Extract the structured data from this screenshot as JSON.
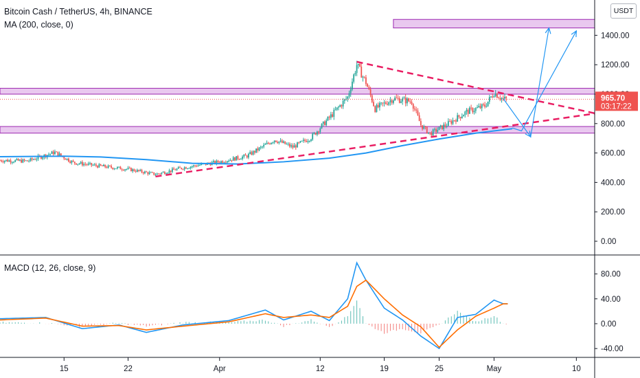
{
  "header": {
    "symbol_title": "Bitcoin Cash / TetherUS, 4h, BINANCE",
    "ma_indicator": "MA (200, close, 0)",
    "macd_indicator": "MACD (12, 26, close, 9)",
    "currency_badge": "USDT"
  },
  "price_badge": {
    "value": "965.70",
    "countdown": "03:17:22",
    "color": "#ef5350"
  },
  "colors": {
    "up": "#26a69a",
    "down": "#ef5350",
    "ma": "#2196f3",
    "zone_fill": "#e9c8ef",
    "zone_border": "#9c27b0",
    "trend": "#e91e63",
    "arrow": "#2196f3",
    "macd": "#2196f3",
    "signal": "#ff6d00"
  },
  "chart_data": [
    {
      "type": "candlestick",
      "title": "Bitcoin Cash / TetherUS, 4h, BINANCE",
      "x_ticks": [
        "15",
        "22",
        "Apr",
        "12",
        "19",
        "25",
        "May",
        "10"
      ],
      "y_ticks": [
        "1400.00",
        "1200.00",
        "1000.00",
        "800.00",
        "600.00",
        "400.00",
        "200.00",
        "0.00"
      ],
      "ylim": [
        -70,
        1640
      ],
      "xlim": [
        "Mar 8",
        "May 12"
      ],
      "last_price": 965.7,
      "ma200_path": [
        {
          "date": "Mar 8",
          "value": 575
        },
        {
          "date": "Mar 15",
          "value": 578
        },
        {
          "date": "Mar 19",
          "value": 573
        },
        {
          "date": "Mar 24",
          "value": 555
        },
        {
          "date": "Mar 29",
          "value": 530
        },
        {
          "date": "Apr 3",
          "value": 525
        },
        {
          "date": "Apr 8",
          "value": 540
        },
        {
          "date": "Apr 13",
          "value": 565
        },
        {
          "date": "Apr 17",
          "value": 600
        },
        {
          "date": "Apr 21",
          "value": 650
        },
        {
          "date": "Apr 25",
          "value": 695
        },
        {
          "date": "Apr 29",
          "value": 735
        },
        {
          "date": "May 3",
          "value": 765
        }
      ],
      "price_path": [
        {
          "date": "Mar 8",
          "value": 550
        },
        {
          "date": "Mar 11",
          "value": 545
        },
        {
          "date": "Mar 14",
          "value": 605
        },
        {
          "date": "Mar 16",
          "value": 535
        },
        {
          "date": "Mar 19",
          "value": 510
        },
        {
          "date": "Mar 22",
          "value": 490
        },
        {
          "date": "Mar 25",
          "value": 455
        },
        {
          "date": "Mar 28",
          "value": 500
        },
        {
          "date": "Apr 1",
          "value": 540
        },
        {
          "date": "Apr 4",
          "value": 580
        },
        {
          "date": "Apr 7",
          "value": 690
        },
        {
          "date": "Apr 9",
          "value": 640
        },
        {
          "date": "Apr 11",
          "value": 705
        },
        {
          "date": "Apr 13",
          "value": 840
        },
        {
          "date": "Apr 15",
          "value": 980
        },
        {
          "date": "Apr 16",
          "value": 1200
        },
        {
          "date": "Apr 17",
          "value": 1080
        },
        {
          "date": "Apr 18",
          "value": 900
        },
        {
          "date": "Apr 20",
          "value": 970
        },
        {
          "date": "Apr 21",
          "value": 960
        },
        {
          "date": "Apr 22",
          "value": 950
        },
        {
          "date": "Apr 23",
          "value": 790
        },
        {
          "date": "Apr 24",
          "value": 730
        },
        {
          "date": "Apr 26",
          "value": 800
        },
        {
          "date": "Apr 28",
          "value": 880
        },
        {
          "date": "Apr 30",
          "value": 920
        },
        {
          "date": "May 1",
          "value": 1010
        },
        {
          "date": "May 2",
          "value": 966
        }
      ],
      "horizontal_zones": [
        {
          "from": 1000,
          "to": 1040,
          "start": "Mar 8"
        },
        {
          "from": 735,
          "to": 780,
          "start": "Mar 8"
        },
        {
          "from": 1450,
          "to": 1508,
          "start": "Apr 20"
        }
      ],
      "trend_lines": [
        {
          "from": {
            "date": "Apr 16",
            "value": 1220
          },
          "to": {
            "date": "May 12",
            "value": 870
          }
        },
        {
          "from": {
            "date": "Mar 25",
            "value": 440
          },
          "to": {
            "date": "May 12",
            "value": 868
          }
        }
      ],
      "projection": [
        {
          "date": "May 2",
          "value": 970
        },
        {
          "date": "May 5",
          "value": 710
        },
        {
          "date": "May 7",
          "value": 1450
        },
        {
          "date": "May 3",
          "value": 770
        },
        {
          "date": "May 4",
          "value": 750
        },
        {
          "date": "May 10",
          "value": 1430
        }
      ]
    },
    {
      "type": "line",
      "title": "MACD (12, 26, close, 9)",
      "y_ticks": [
        "80.00",
        "40.00",
        "0.00",
        "-40.00"
      ],
      "ylim": [
        -52,
        105
      ],
      "series": [
        {
          "name": "MACD",
          "points": [
            {
              "date": "Mar 8",
              "value": 8
            },
            {
              "date": "Mar 13",
              "value": 10
            },
            {
              "date": "Mar 17",
              "value": -8
            },
            {
              "date": "Mar 21",
              "value": -2
            },
            {
              "date": "Mar 24",
              "value": -14
            },
            {
              "date": "Mar 28",
              "value": -2
            },
            {
              "date": "Apr 2",
              "value": 5
            },
            {
              "date": "Apr 6",
              "value": 22
            },
            {
              "date": "Apr 8",
              "value": 6
            },
            {
              "date": "Apr 11",
              "value": 20
            },
            {
              "date": "Apr 13",
              "value": 5
            },
            {
              "date": "Apr 15",
              "value": 40
            },
            {
              "date": "Apr 16",
              "value": 98
            },
            {
              "date": "Apr 17",
              "value": 70
            },
            {
              "date": "Apr 19",
              "value": 25
            },
            {
              "date": "Apr 21",
              "value": 6
            },
            {
              "date": "Apr 23",
              "value": -20
            },
            {
              "date": "Apr 25",
              "value": -40
            },
            {
              "date": "Apr 27",
              "value": 10
            },
            {
              "date": "Apr 29",
              "value": 15
            },
            {
              "date": "May 1",
              "value": 38
            },
            {
              "date": "May 2",
              "value": 32
            }
          ]
        },
        {
          "name": "Signal",
          "points": [
            {
              "date": "Mar 8",
              "value": 6
            },
            {
              "date": "Mar 13",
              "value": 9
            },
            {
              "date": "Mar 17",
              "value": -4
            },
            {
              "date": "Mar 21",
              "value": -3
            },
            {
              "date": "Mar 24",
              "value": -10
            },
            {
              "date": "Mar 28",
              "value": -4
            },
            {
              "date": "Apr 2",
              "value": 3
            },
            {
              "date": "Apr 6",
              "value": 16
            },
            {
              "date": "Apr 8",
              "value": 10
            },
            {
              "date": "Apr 11",
              "value": 14
            },
            {
              "date": "Apr 13",
              "value": 10
            },
            {
              "date": "Apr 15",
              "value": 28
            },
            {
              "date": "Apr 16",
              "value": 60
            },
            {
              "date": "Apr 17",
              "value": 70
            },
            {
              "date": "Apr 19",
              "value": 40
            },
            {
              "date": "Apr 21",
              "value": 14
            },
            {
              "date": "Apr 23",
              "value": -5
            },
            {
              "date": "Apr 25",
              "value": -38
            },
            {
              "date": "Apr 27",
              "value": -10
            },
            {
              "date": "Apr 29",
              "value": 12
            },
            {
              "date": "May 1",
              "value": 25
            },
            {
              "date": "May 2",
              "value": 32
            }
          ]
        }
      ]
    }
  ]
}
